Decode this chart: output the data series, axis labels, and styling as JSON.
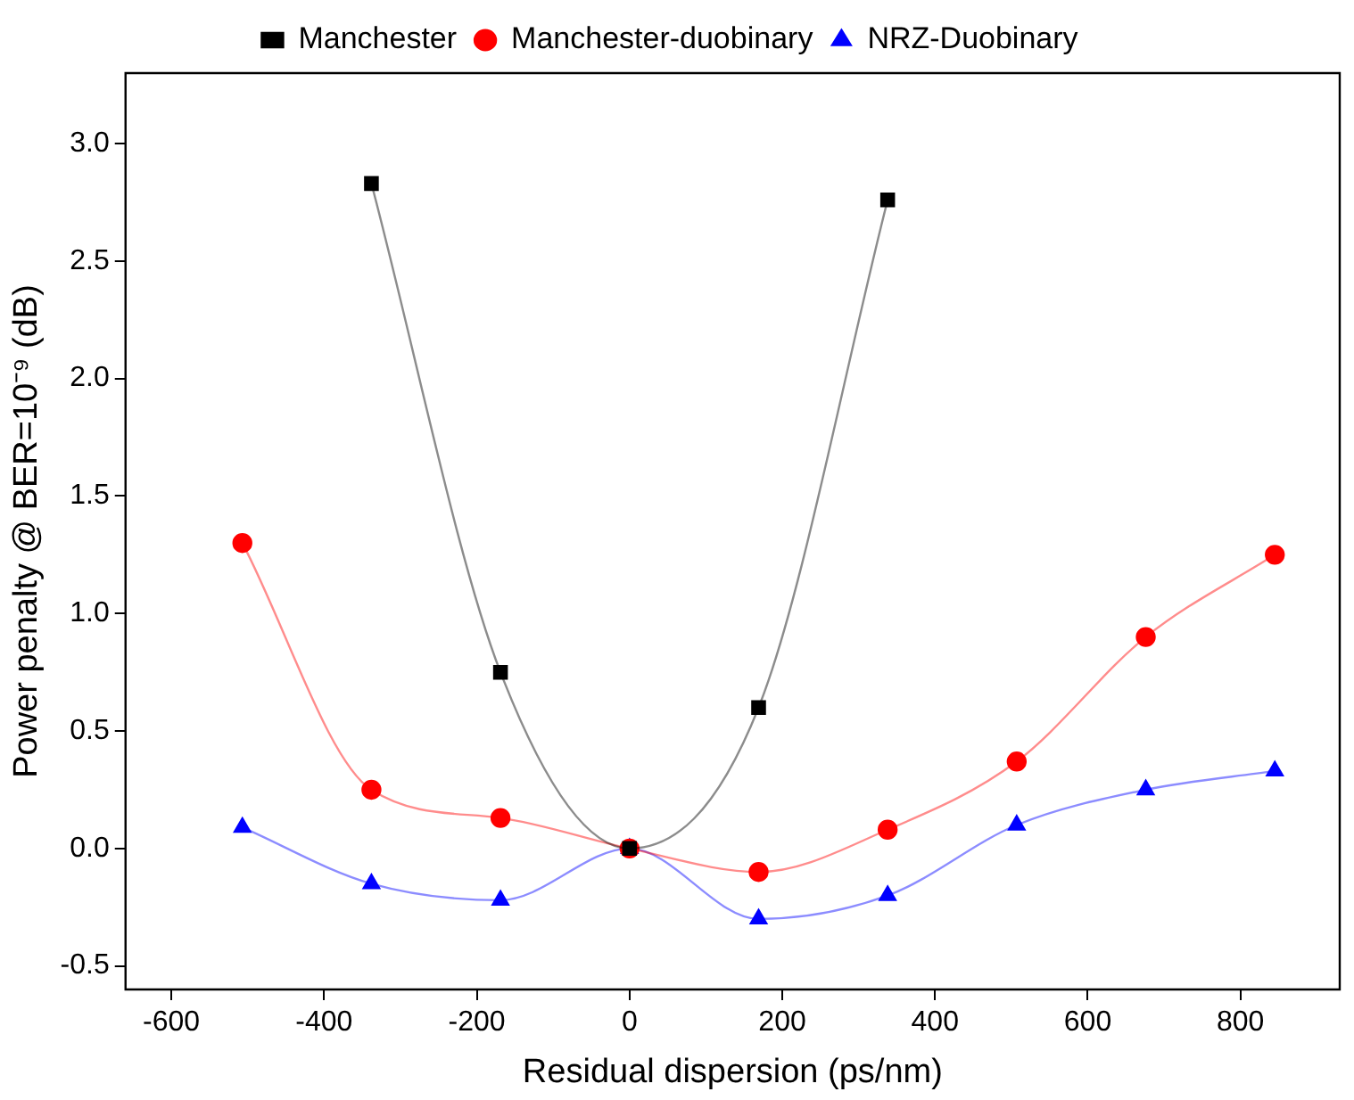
{
  "chart_data": {
    "type": "line",
    "xlabel": "Residual dispersion (ps/nm)",
    "ylabel": "Power penalty @ BER=10⁻⁹ (dB)",
    "xlim": [
      -660,
      930
    ],
    "ylim": [
      -0.6,
      3.3
    ],
    "xticks": [
      -600,
      -400,
      -200,
      0,
      200,
      400,
      600,
      800
    ],
    "yticks": [
      {
        "value": -0.5,
        "label": "-0.5"
      },
      {
        "value": 0,
        "label": "0.0"
      },
      {
        "value": 0.5,
        "label": "0.5"
      },
      {
        "value": 1,
        "label": "1.0"
      },
      {
        "value": 1.5,
        "label": "1.5"
      },
      {
        "value": 2,
        "label": "2.0"
      },
      {
        "value": 2.5,
        "label": "2.5"
      },
      {
        "value": 3,
        "label": "3.0"
      }
    ],
    "grid": false,
    "legend": "top",
    "series": [
      {
        "name": "Manchester",
        "color": "#000000",
        "marker": "square",
        "x": [
          -338,
          -169,
          0,
          169,
          338
        ],
        "values": [
          2.83,
          0.75,
          0,
          0.6,
          2.76
        ]
      },
      {
        "name": "Manchester-duobinary",
        "color": "#ff0000",
        "marker": "circle",
        "x": [
          -507,
          -338,
          -169,
          0,
          169,
          338,
          507,
          676,
          845
        ],
        "values": [
          1.3,
          0.25,
          0.13,
          0,
          -0.1,
          0.08,
          0.37,
          0.9,
          1.25
        ]
      },
      {
        "name": "NRZ-Duobinary",
        "color": "#0000ff",
        "marker": "triangle",
        "x": [
          -507,
          -338,
          -169,
          0,
          169,
          338,
          507,
          676,
          845
        ],
        "values": [
          0.09,
          -0.15,
          -0.22,
          0,
          -0.3,
          -0.2,
          0.1,
          0.25,
          0.33
        ]
      }
    ]
  }
}
